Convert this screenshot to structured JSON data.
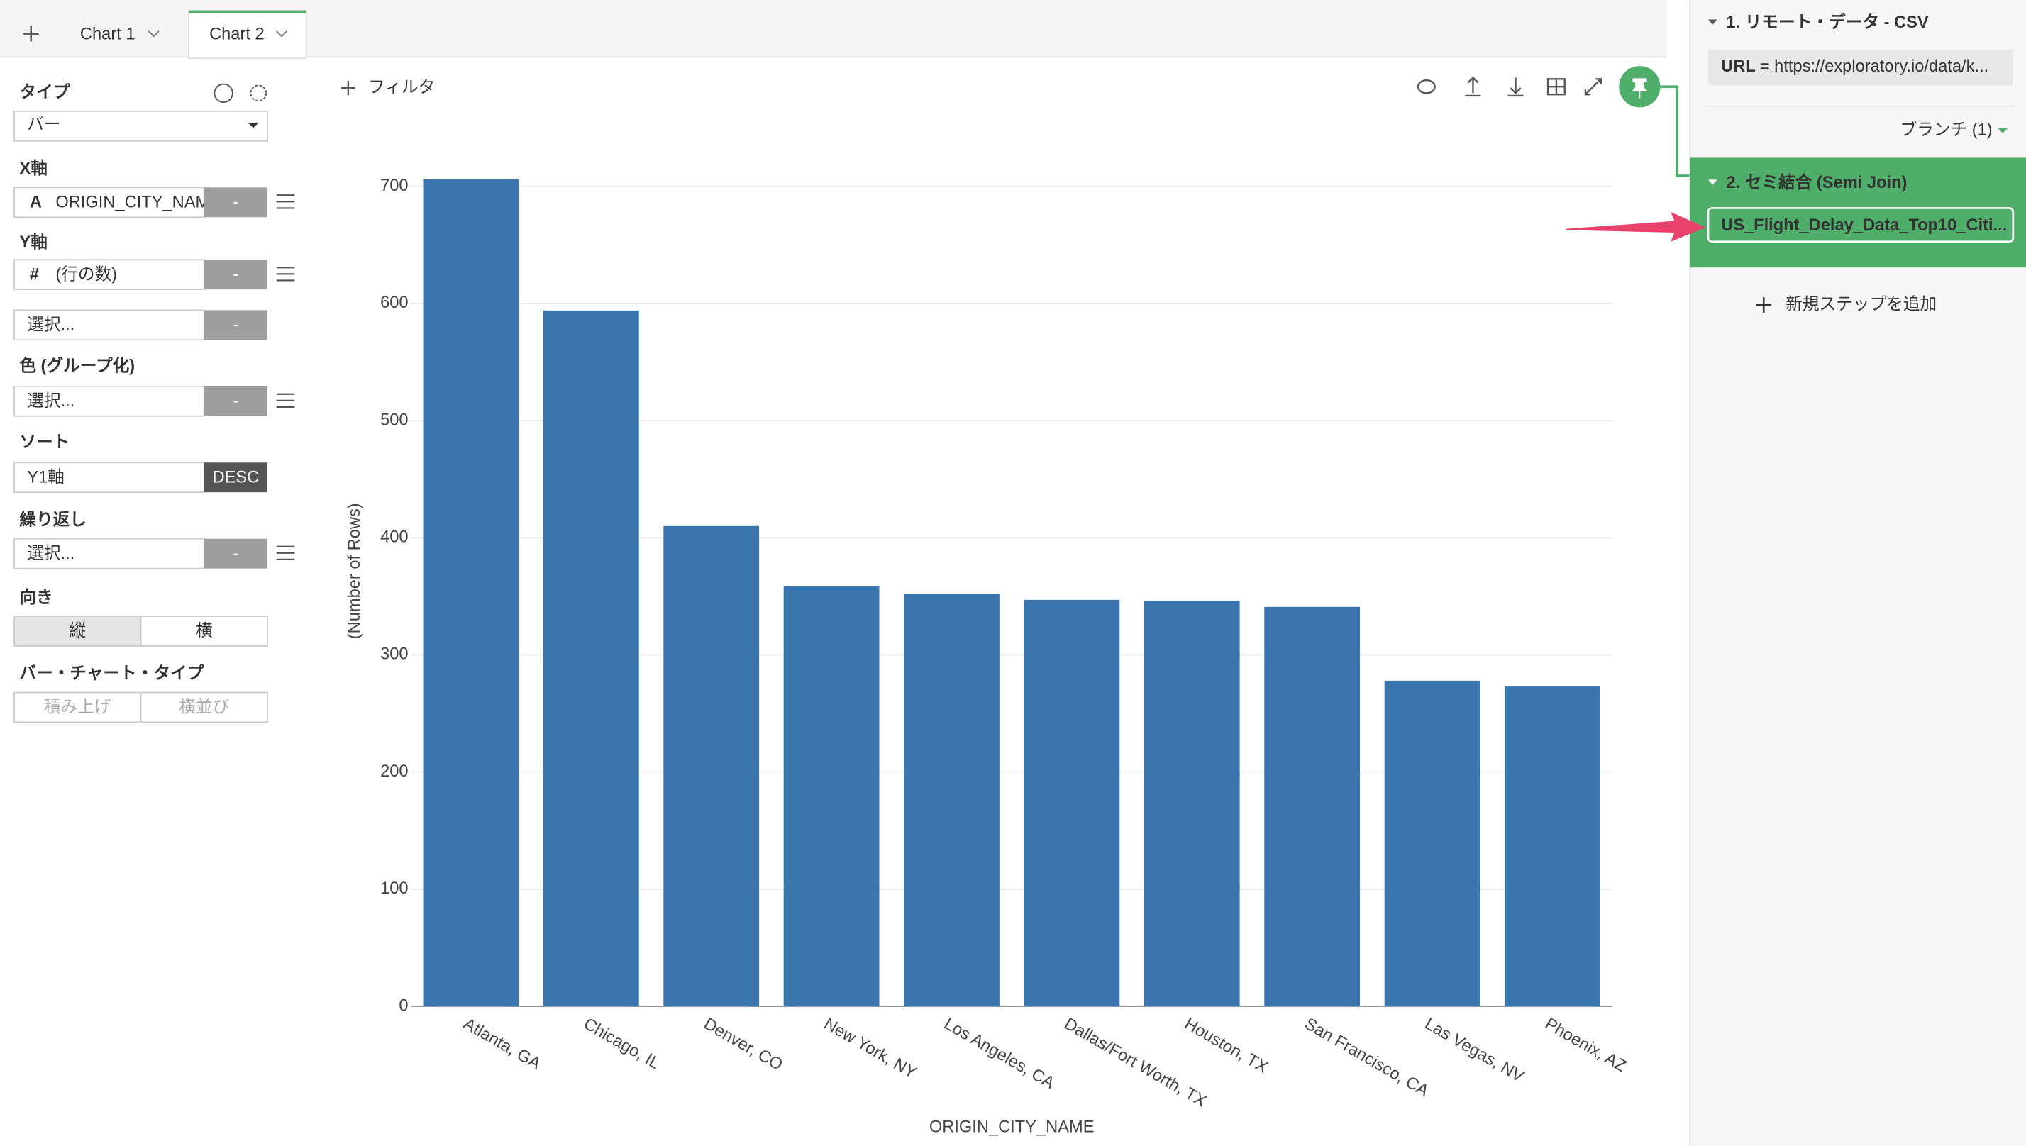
{
  "tabs": [
    "Chart 1",
    "Chart 2"
  ],
  "left_panel": {
    "type_label": "タイプ",
    "type_value": "バー",
    "controls": [
      {
        "label": "X軸",
        "icon": "A",
        "value": "ORIGIN_CITY_NAM",
        "button": "-"
      },
      {
        "label": "Y軸",
        "icon": "#",
        "value": "(行の数)",
        "button": "-"
      },
      {
        "value": "選択...",
        "button": "-"
      },
      {
        "label": "色 (グループ化)",
        "value": "選択...",
        "button": "-"
      },
      {
        "label": "ソート",
        "value": "Y1軸",
        "button": "DESC"
      },
      {
        "label": "繰り返し",
        "value": "選択...",
        "button": "-"
      }
    ],
    "orientation": {
      "label": "向き",
      "options": [
        "縦",
        "横"
      ]
    },
    "bar_type": {
      "label": "バー・チャート・タイプ",
      "options": [
        "積み上げ",
        "横並び"
      ]
    }
  },
  "toolbar": {
    "filter": "フィルタ"
  },
  "right_panel": {
    "step1": {
      "title": "1. リモート・データ - CSV",
      "key": "URL",
      "value": "= https://exploratory.io/data/k..."
    },
    "branch": "ブランチ (1)",
    "step2": {
      "title": "2. セミ結合 (Semi Join)",
      "item": "US_Flight_Delay_Data_Top10_Citi..."
    },
    "add_step": "新規ステップを追加"
  },
  "chart_data": {
    "type": "bar",
    "x_label": "ORIGIN_CITY_NAME",
    "y_label": "(Number of Rows)",
    "categories": [
      "Atlanta, GA",
      "Chicago, IL",
      "Denver, CO",
      "New York, NY",
      "Los Angeles, CA",
      "Dallas/Fort Worth, TX",
      "Houston, TX",
      "San Francisco, CA",
      "Las Vegas, NV",
      "Phoenix, AZ"
    ],
    "values": [
      706,
      594,
      410,
      359,
      352,
      347,
      346,
      341,
      278,
      273
    ],
    "color": "#3a75ae",
    "ylim": [
      0,
      720
    ],
    "yticks": [
      0,
      100,
      200,
      300,
      400,
      500,
      600,
      700
    ],
    "grid": true
  }
}
